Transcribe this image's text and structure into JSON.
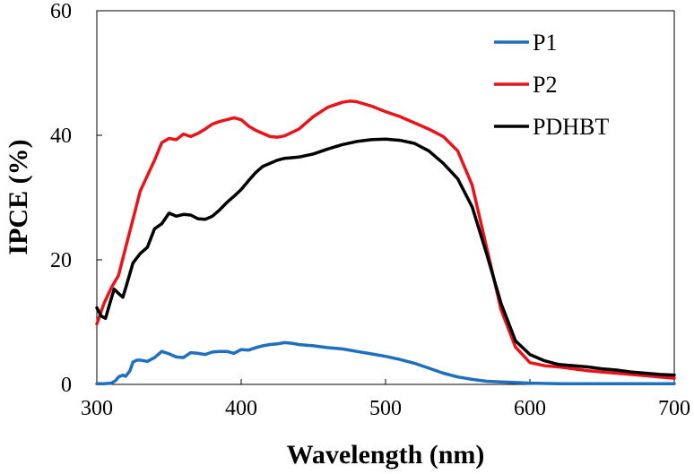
{
  "chart_data": {
    "type": "line",
    "xlabel": "Wavelength (nm)",
    "ylabel": "IPCE (%)",
    "xlim": [
      300,
      700
    ],
    "ylim": [
      0,
      60
    ],
    "x_ticks": [
      300,
      400,
      500,
      600,
      700
    ],
    "y_ticks": [
      0,
      20,
      40,
      60
    ],
    "grid": false,
    "legend_position": "top-right",
    "series": [
      {
        "name": "P1",
        "color": "#1f6fbf",
        "x": [
          300,
          305,
          310,
          313,
          315,
          318,
          320,
          323,
          325,
          328,
          330,
          335,
          340,
          345,
          350,
          355,
          360,
          365,
          370,
          375,
          380,
          385,
          390,
          395,
          400,
          405,
          410,
          415,
          420,
          425,
          430,
          435,
          440,
          445,
          450,
          460,
          470,
          480,
          490,
          500,
          510,
          520,
          530,
          540,
          550,
          560,
          570,
          580,
          590,
          600,
          620,
          650,
          700
        ],
        "y": [
          0.1,
          0.1,
          0.2,
          0.6,
          1.2,
          1.5,
          1.3,
          2.2,
          3.6,
          3.9,
          3.9,
          3.7,
          4.3,
          5.3,
          4.9,
          4.4,
          4.3,
          5.1,
          5.0,
          4.8,
          5.2,
          5.3,
          5.3,
          5.0,
          5.6,
          5.5,
          5.9,
          6.2,
          6.4,
          6.5,
          6.7,
          6.6,
          6.4,
          6.3,
          6.2,
          5.9,
          5.7,
          5.3,
          4.9,
          4.5,
          4.0,
          3.4,
          2.6,
          1.8,
          1.2,
          0.8,
          0.5,
          0.4,
          0.3,
          0.2,
          0.1,
          0.1,
          0.1
        ]
      },
      {
        "name": "P2",
        "color": "#e8141a",
        "x": [
          300,
          305,
          310,
          315,
          320,
          325,
          330,
          335,
          340,
          345,
          350,
          355,
          360,
          365,
          370,
          375,
          380,
          385,
          390,
          395,
          400,
          405,
          410,
          415,
          420,
          425,
          430,
          440,
          450,
          460,
          470,
          475,
          480,
          490,
          500,
          510,
          520,
          530,
          540,
          550,
          560,
          570,
          580,
          590,
          600,
          610,
          620,
          630,
          640,
          650,
          660,
          670,
          680,
          690,
          700
        ],
        "y": [
          9.7,
          13.0,
          15.5,
          17.5,
          22.0,
          26.5,
          31.0,
          33.5,
          36.0,
          38.8,
          39.5,
          39.3,
          40.2,
          39.8,
          40.3,
          41.0,
          41.8,
          42.2,
          42.5,
          42.8,
          42.5,
          41.5,
          40.8,
          40.3,
          39.8,
          39.7,
          39.9,
          41.0,
          43.0,
          44.5,
          45.3,
          45.5,
          45.4,
          44.7,
          43.8,
          43.0,
          42.0,
          41.0,
          39.8,
          37.5,
          32.0,
          22.0,
          12.0,
          6.0,
          3.5,
          3.0,
          2.8,
          2.5,
          2.2,
          2.0,
          1.8,
          1.6,
          1.4,
          1.2,
          1.0
        ]
      },
      {
        "name": "PDHBT",
        "color": "#000000",
        "x": [
          300,
          303,
          306,
          309,
          312,
          315,
          318,
          320,
          325,
          330,
          335,
          340,
          345,
          350,
          355,
          360,
          365,
          370,
          375,
          380,
          385,
          390,
          395,
          400,
          405,
          410,
          415,
          420,
          425,
          430,
          440,
          450,
          460,
          470,
          480,
          490,
          500,
          510,
          520,
          530,
          540,
          550,
          560,
          570,
          580,
          590,
          600,
          610,
          620,
          630,
          640,
          650,
          660,
          670,
          680,
          690,
          700
        ],
        "y": [
          12.3,
          11.0,
          10.6,
          13.0,
          15.3,
          14.6,
          14.0,
          15.5,
          19.5,
          21.0,
          22.0,
          25.0,
          25.8,
          27.5,
          27.0,
          27.3,
          27.2,
          26.6,
          26.5,
          27.0,
          28.0,
          29.2,
          30.2,
          31.3,
          32.7,
          34.0,
          35.0,
          35.5,
          36.0,
          36.3,
          36.5,
          37.0,
          37.8,
          38.5,
          39.0,
          39.3,
          39.4,
          39.2,
          38.7,
          37.5,
          35.5,
          33.0,
          28.5,
          21.0,
          13.0,
          7.0,
          4.8,
          3.8,
          3.2,
          3.0,
          2.8,
          2.5,
          2.3,
          2.0,
          1.8,
          1.6,
          1.5
        ]
      }
    ]
  }
}
